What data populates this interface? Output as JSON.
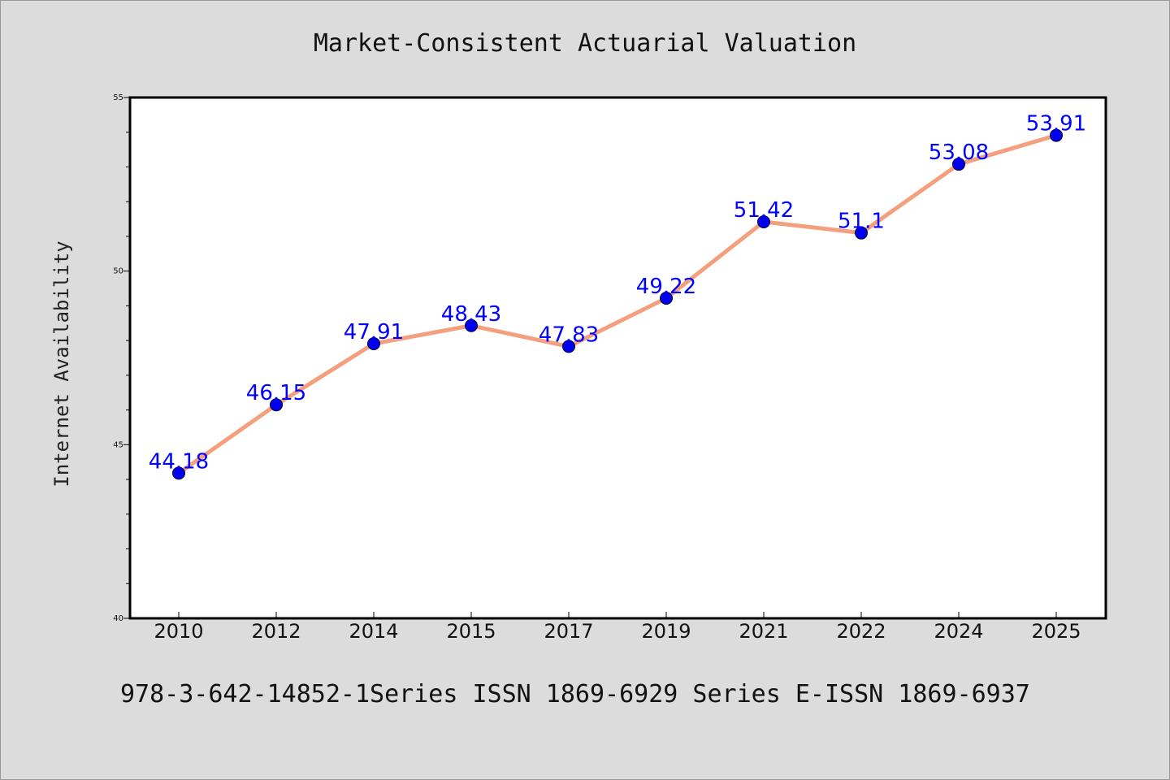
{
  "colors": {
    "background": "#dcdcdc",
    "plot_background": "#ffffff",
    "line": "#f4a07e",
    "marker": "#0000ee",
    "data_label": "#0000ff",
    "axis": "#000000"
  },
  "footer": "978-3-642-14852-1Series ISSN 1869-6929 Series E-ISSN 1869-6937",
  "chart_data": {
    "type": "line",
    "title": "Market-Consistent Actuarial Valuation",
    "xlabel": "",
    "ylabel": "Internet Availability",
    "categories": [
      "2010",
      "2012",
      "2014",
      "2015",
      "2017",
      "2019",
      "2021",
      "2022",
      "2024",
      "2025"
    ],
    "series": [
      {
        "values": [
          44.18,
          46.15,
          47.91,
          48.43,
          47.83,
          49.22,
          51.42,
          51.1,
          53.08,
          53.91
        ],
        "labels": [
          "44.18",
          "46.15",
          "47.91",
          "48.43",
          "47.83",
          "49.22",
          "51.42",
          "51.1",
          "53.08",
          "53.91"
        ]
      }
    ],
    "ylim": [
      40,
      55
    ],
    "yticks": [
      40,
      45,
      50,
      55
    ],
    "ytick_labels": [
      "40",
      "45",
      "50",
      "55"
    ],
    "y_minor_step": 1,
    "grid": false,
    "legend": "none",
    "marker": "circle"
  }
}
